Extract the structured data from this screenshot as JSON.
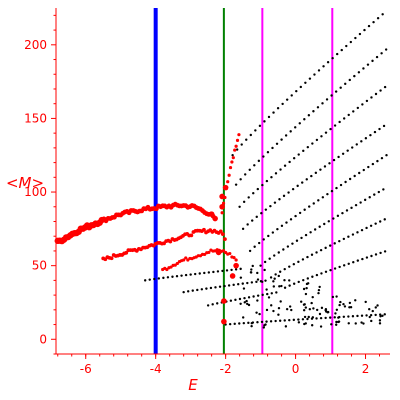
{
  "chart_data": {
    "type": "scatter",
    "title": "",
    "xlabel": "E",
    "ylabel": "<M>",
    "xlim": [
      -6.85,
      2.7
    ],
    "ylim": [
      -10,
      225
    ],
    "xticks": [
      -6,
      -4,
      -2,
      0,
      2
    ],
    "yticks": [
      0,
      50,
      100,
      150,
      200
    ],
    "grid": false,
    "axis_color": "#ff0000",
    "vertical_lines": [
      {
        "x": -4.0,
        "color": "#0000ff",
        "weight": "thick"
      },
      {
        "x": -2.05,
        "color": "#008000",
        "weight": "thin"
      },
      {
        "x": -0.95,
        "color": "#ff00ff",
        "weight": "thin"
      },
      {
        "x": 1.05,
        "color": "#ff00ff",
        "weight": "thin"
      }
    ],
    "series": [
      {
        "color": "#ff0000",
        "style": "heavy-branches",
        "branches": [
          {
            "x_start": -6.8,
            "x_end": -2.35,
            "points": [
              [
                -6.8,
                66
              ],
              [
                -6.2,
                74
              ],
              [
                -5.6,
                80
              ],
              [
                -5.0,
                85
              ],
              [
                -4.4,
                88
              ],
              [
                -3.8,
                90
              ],
              [
                -3.3,
                91
              ],
              [
                -2.9,
                90
              ],
              [
                -2.6,
                87
              ],
              [
                -2.35,
                83
              ]
            ]
          },
          {
            "x_start": -5.5,
            "x_end": -2.0,
            "points": [
              [
                -5.5,
                54
              ],
              [
                -5.0,
                58
              ],
              [
                -4.4,
                62
              ],
              [
                -3.8,
                66
              ],
              [
                -3.2,
                70
              ],
              [
                -2.8,
                73
              ],
              [
                -2.4,
                74
              ],
              [
                -2.1,
                72
              ],
              [
                -2.0,
                68
              ]
            ]
          },
          {
            "x_start": -3.8,
            "x_end": -1.7,
            "points": [
              [
                -3.8,
                47
              ],
              [
                -3.3,
                53
              ],
              [
                -2.8,
                57
              ],
              [
                -2.4,
                60
              ],
              [
                -2.1,
                60
              ],
              [
                -1.9,
                58
              ],
              [
                -1.7,
                54
              ]
            ]
          },
          {
            "x_start": -2.1,
            "x_end": -1.6,
            "points": [
              [
                -2.1,
                86
              ],
              [
                -2.0,
                100
              ],
              [
                -1.9,
                112
              ],
              [
                -1.8,
                122
              ],
              [
                -1.7,
                132
              ],
              [
                -1.6,
                140
              ]
            ]
          }
        ],
        "isolated_points": [
          [
            -2.05,
            12
          ],
          [
            -2.05,
            26
          ],
          [
            -2.1,
            90
          ],
          [
            -2.1,
            97
          ],
          [
            -2.0,
            103
          ],
          [
            -2.3,
            82
          ],
          [
            -2.4,
            85
          ],
          [
            -1.7,
            50
          ],
          [
            -1.8,
            43
          ],
          [
            -2.2,
            59
          ]
        ]
      },
      {
        "color": "#000000",
        "style": "dotted-branches",
        "branches": [
          {
            "x_start": -1.8,
            "x_end": 2.6,
            "y_start": 125,
            "y_end": 223
          },
          {
            "x_start": -1.7,
            "x_end": 2.6,
            "y_start": 105,
            "y_end": 197
          },
          {
            "x_start": -1.6,
            "x_end": 2.6,
            "y_start": 90,
            "y_end": 172
          },
          {
            "x_start": -1.5,
            "x_end": 2.6,
            "y_start": 75,
            "y_end": 146
          },
          {
            "x_start": -1.3,
            "x_end": 2.6,
            "y_start": 60,
            "y_end": 125
          },
          {
            "x_start": -1.0,
            "x_end": 2.6,
            "y_start": 50,
            "y_end": 103
          },
          {
            "x_start": -0.7,
            "x_end": 2.6,
            "y_start": 42,
            "y_end": 82
          },
          {
            "x_start": -0.3,
            "x_end": 2.6,
            "y_start": 35,
            "y_end": 60
          },
          {
            "x_start": -4.3,
            "x_end": -1.5,
            "y_start": 40,
            "y_end": 48
          },
          {
            "x_start": -3.2,
            "x_end": -0.8,
            "y_start": 32,
            "y_end": 40
          },
          {
            "x_start": -2.5,
            "x_end": -0.5,
            "y_start": 23,
            "y_end": 32
          },
          {
            "x_start": -2.0,
            "x_end": 2.6,
            "y_start": 10,
            "y_end": 17
          }
        ]
      }
    ]
  }
}
